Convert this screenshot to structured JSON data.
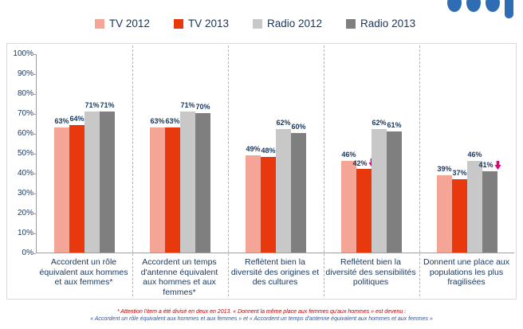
{
  "legend": [
    {
      "label": "TV 2012",
      "color": "#F5A596"
    },
    {
      "label": "TV 2013",
      "color": "#E8380D"
    },
    {
      "label": "Radio 2012",
      "color": "#C8C8C8"
    },
    {
      "label": "Radio 2013",
      "color": "#7F7F7F"
    }
  ],
  "chart_data": {
    "type": "bar",
    "categories": [
      "Accordent un rôle équivalent aux hommes et aux femmes*",
      "Accordent un temps d'antenne équivalent aux hommes et aux femmes*",
      "Reflètent bien la diversité des origines et des cultures",
      "Reflètent bien la diversité des sensibilités politiques",
      "Donnent une place aux populations les plus fragilisées"
    ],
    "series": [
      {
        "name": "TV 2012",
        "color": "#F5A596",
        "values": [
          63,
          63,
          49,
          46,
          39
        ]
      },
      {
        "name": "TV 2013",
        "color": "#E8380D",
        "values": [
          64,
          63,
          48,
          42,
          37
        ]
      },
      {
        "name": "Radio 2012",
        "color": "#C8C8C8",
        "values": [
          71,
          71,
          62,
          62,
          46
        ]
      },
      {
        "name": "Radio 2013",
        "color": "#7F7F7F",
        "values": [
          71,
          70,
          60,
          61,
          41
        ]
      }
    ],
    "value_suffix": "%",
    "ylim": [
      0,
      100
    ],
    "ytick_step": 10,
    "grid": false,
    "legend_position": "top",
    "arrows": [
      {
        "category_index": 3,
        "series_index": 1
      },
      {
        "category_index": 4,
        "series_index": 3
      }
    ],
    "arrow_color": "#E5007D",
    "accent_text_color": "#17375E"
  },
  "footnote": {
    "line1": "* Attention  l'item a été divisé en deux en 2013. « Donnent la même place aux femmes qu'aux hommes » est devenu :",
    "line2": "« Accordent un rôle équivalent aux hommes et aux femmes »  et « Accordent un temps d'antenne équivalent aux hommes et aux femmes »"
  }
}
